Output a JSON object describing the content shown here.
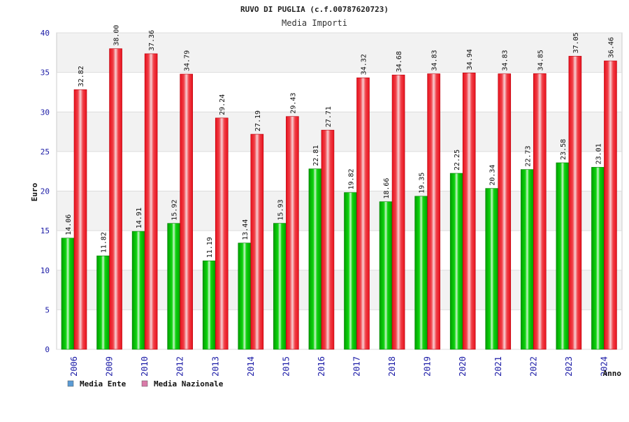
{
  "chart_data": {
    "type": "bar",
    "title": "RUVO DI PUGLIA (c.f.00787620723)",
    "subtitle": "Media Importi",
    "xlabel": "Anno",
    "ylabel": "Euro",
    "ylim": [
      0,
      40
    ],
    "yticks": [
      0,
      5,
      10,
      15,
      20,
      25,
      30,
      35,
      40
    ],
    "grid": true,
    "legend_position": "bottom-left",
    "categories": [
      "2006",
      "2009",
      "2010",
      "2012",
      "2013",
      "2014",
      "2015",
      "2016",
      "2017",
      "2018",
      "2019",
      "2020",
      "2021",
      "2022",
      "2023",
      "2024"
    ],
    "series": [
      {
        "name": "Media Ente",
        "values": [
          14.06,
          11.82,
          14.91,
          15.92,
          11.19,
          13.44,
          15.93,
          22.81,
          19.82,
          18.66,
          19.35,
          22.25,
          20.34,
          22.73,
          23.58,
          23.01
        ],
        "labels": [
          "14.06",
          "11.82",
          "14.91",
          "15.92",
          "11.19",
          "13.44",
          "15.93",
          "22.81",
          "19.82",
          "18.66",
          "19.35",
          "22.25",
          "20.34",
          "22.73",
          "23.58",
          "23.01"
        ],
        "legend_color": "#5b9bd5",
        "bar_color": "#00b000"
      },
      {
        "name": "Media Nazionale",
        "values": [
          32.82,
          38.0,
          37.36,
          34.79,
          29.24,
          27.19,
          29.43,
          27.71,
          34.32,
          34.68,
          34.83,
          34.94,
          34.83,
          34.85,
          37.05,
          36.46
        ],
        "labels": [
          "32.82",
          "38.00",
          "37.36",
          "34.79",
          "29.24",
          "27.19",
          "29.43",
          "27.71",
          "34.32",
          "34.68",
          "34.83",
          "34.94",
          "34.83",
          "34.85",
          "37.05",
          "36.46"
        ],
        "legend_color": "#d97aa8",
        "bar_color": "#ee1c25"
      }
    ]
  }
}
